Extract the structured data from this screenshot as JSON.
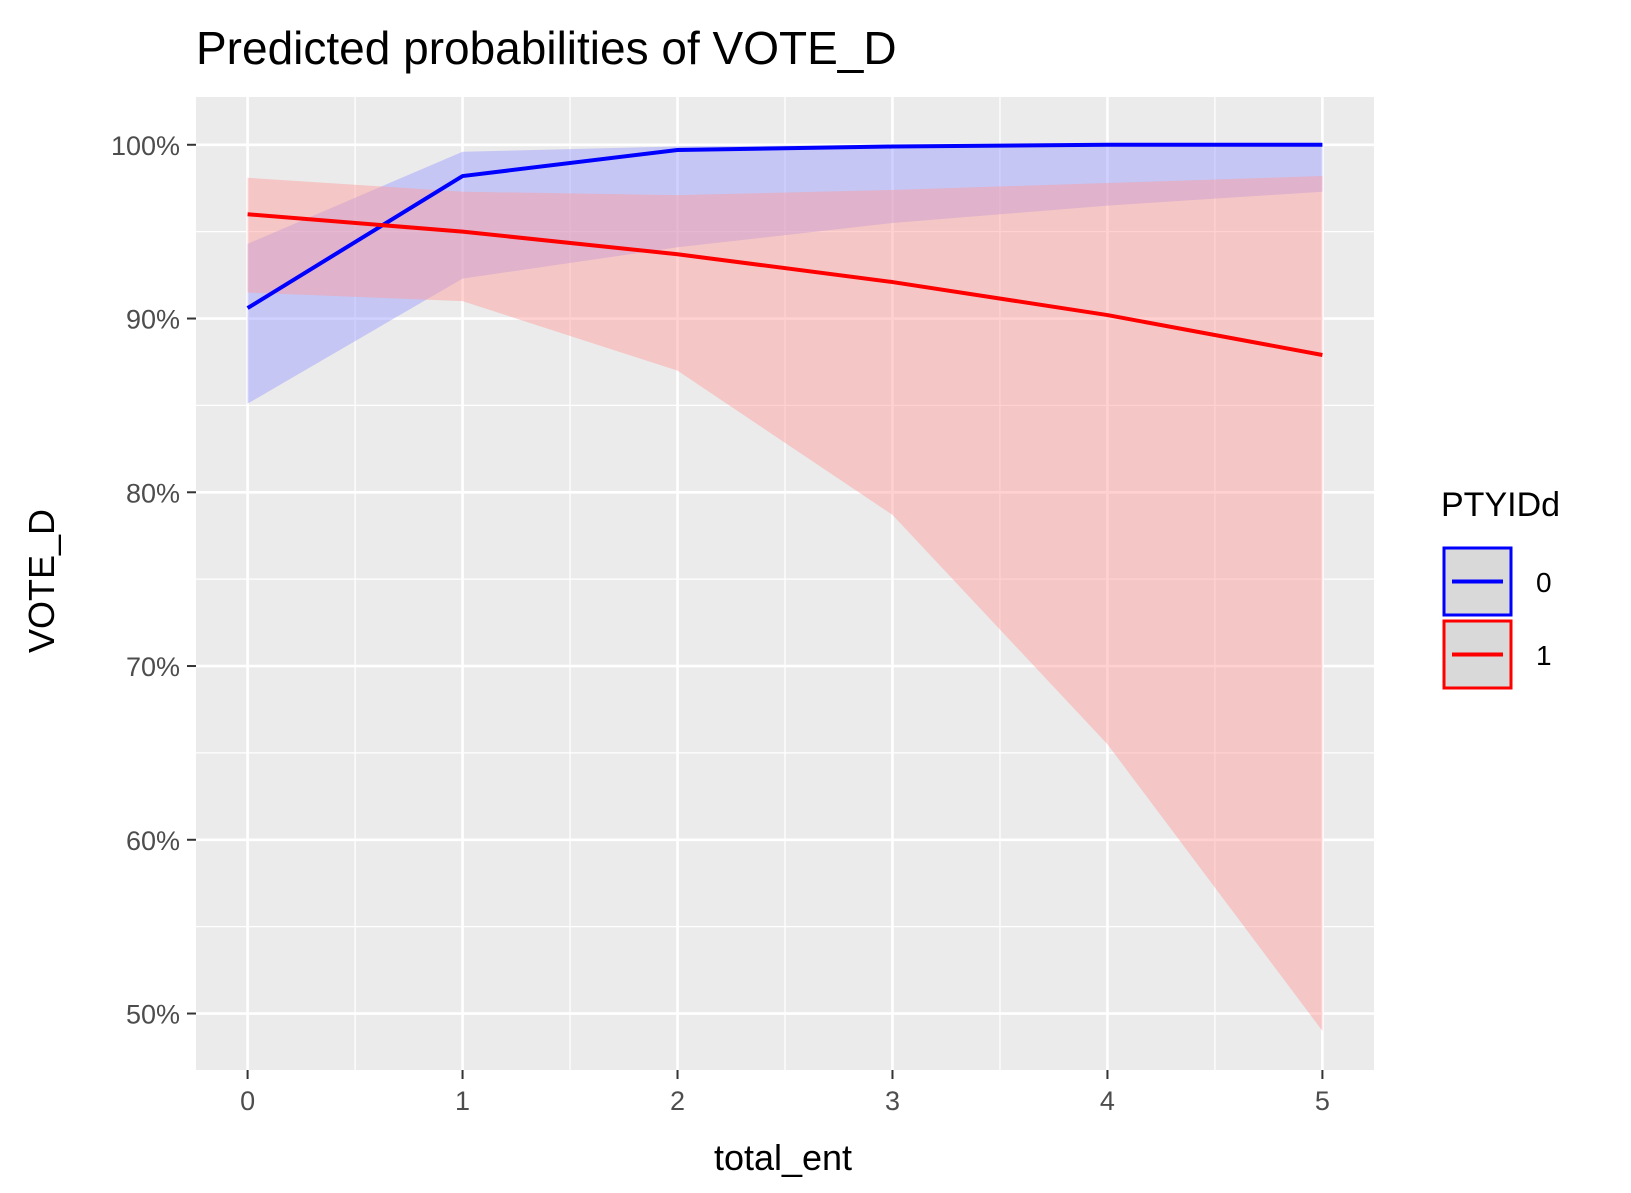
{
  "chart_data": {
    "type": "line",
    "title": "Predicted probabilities of VOTE_D",
    "xlabel": "total_ent",
    "ylabel": "VOTE_D",
    "x": [
      0,
      1,
      2,
      3,
      4,
      5
    ],
    "xlim": [
      -0.24,
      5.24
    ],
    "ylim": [
      0.4675,
      1.0275
    ],
    "x_ticks": [
      0,
      1,
      2,
      3,
      4,
      5
    ],
    "x_tick_labels": [
      "0",
      "1",
      "2",
      "3",
      "4",
      "5"
    ],
    "y_ticks": [
      0.5,
      0.6,
      0.7,
      0.8,
      0.9,
      1.0
    ],
    "y_tick_labels": [
      "50%",
      "60%",
      "70%",
      "80%",
      "90%",
      "100%"
    ],
    "grid": true,
    "panel_background": "#ebebeb",
    "legend": {
      "title": "PTYIDd",
      "position": "right"
    },
    "series": [
      {
        "name": "0",
        "color": "#0000ff",
        "ribbon_color": "#9999ff",
        "values": [
          0.906,
          0.982,
          0.997,
          0.999,
          1.0,
          1.0
        ],
        "lower": [
          0.851,
          0.923,
          0.941,
          0.955,
          0.965,
          0.973
        ],
        "upper": [
          0.943,
          0.996,
          0.999,
          1.0,
          1.0,
          1.0
        ]
      },
      {
        "name": "1",
        "color": "#ff0000",
        "ribbon_color": "#ff9999",
        "values": [
          0.96,
          0.95,
          0.937,
          0.921,
          0.902,
          0.879
        ],
        "lower": [
          0.915,
          0.91,
          0.87,
          0.787,
          0.655,
          0.49
        ],
        "upper": [
          0.981,
          0.973,
          0.971,
          0.974,
          0.978,
          0.982
        ]
      }
    ]
  }
}
